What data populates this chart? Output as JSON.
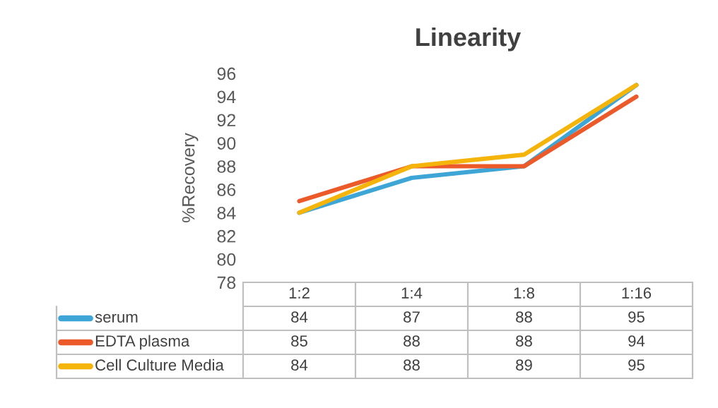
{
  "chart_data": {
    "type": "line",
    "title": "Linearity",
    "ylabel": "%Recovery",
    "categories": [
      "1:2",
      "1:4",
      "1:8",
      "1:16"
    ],
    "series": [
      {
        "name": "serum",
        "color": "#3ea6d6",
        "values": [
          84,
          87,
          88,
          95
        ]
      },
      {
        "name": "EDTA plasma",
        "color": "#ec5a2a",
        "values": [
          85,
          88,
          88,
          94
        ]
      },
      {
        "name": "Cell Culture Media",
        "color": "#f5b40a",
        "values": [
          84,
          88,
          89,
          95
        ]
      }
    ],
    "ylim": [
      78,
      96
    ],
    "yticks": [
      78,
      80,
      82,
      84,
      86,
      88,
      90,
      92,
      94,
      96
    ],
    "grid": false,
    "legend": "bottom",
    "data_labels": true,
    "marker": "none",
    "line_style": "solid"
  }
}
